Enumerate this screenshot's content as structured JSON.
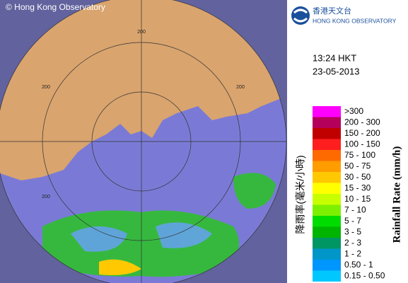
{
  "header": {
    "copyright": "© Hong Kong Observatory"
  },
  "logo": {
    "chinese": "香港天文台",
    "english": "HONG KONG OBSERVATORY"
  },
  "time": "13:24 HKT",
  "date": "23-05-2013",
  "ring_labels": [
    "200",
    "200",
    "200",
    "200"
  ],
  "legend": {
    "title_zh": "降雨率(毫米/小時)",
    "title_en": "Rainfall Rate (mm/h)",
    "items": [
      {
        "label": ">300",
        "color": "#ff00ff"
      },
      {
        "label": "200 - 300",
        "color": "#b4005a"
      },
      {
        "label": "150 - 200",
        "color": "#c00000"
      },
      {
        "label": "100 - 150",
        "color": "#ff1e1e"
      },
      {
        "label": "75 - 100",
        "color": "#ff6a00"
      },
      {
        "label": "50 - 75",
        "color": "#ff9c00"
      },
      {
        "label": "30 - 50",
        "color": "#ffc800"
      },
      {
        "label": "15 - 30",
        "color": "#ffff00"
      },
      {
        "label": "10 - 15",
        "color": "#c8ff00"
      },
      {
        "label": "7 - 10",
        "color": "#7cf000"
      },
      {
        "label": "5 - 7",
        "color": "#00dc00"
      },
      {
        "label": "3 - 5",
        "color": "#00b400"
      },
      {
        "label": "2 - 3",
        "color": "#009664"
      },
      {
        "label": "1 - 2",
        "color": "#0096c8"
      },
      {
        "label": "0.50 - 1",
        "color": "#0096ff"
      },
      {
        "label": "0.15 - 0.50",
        "color": "#00c8ff"
      }
    ]
  }
}
